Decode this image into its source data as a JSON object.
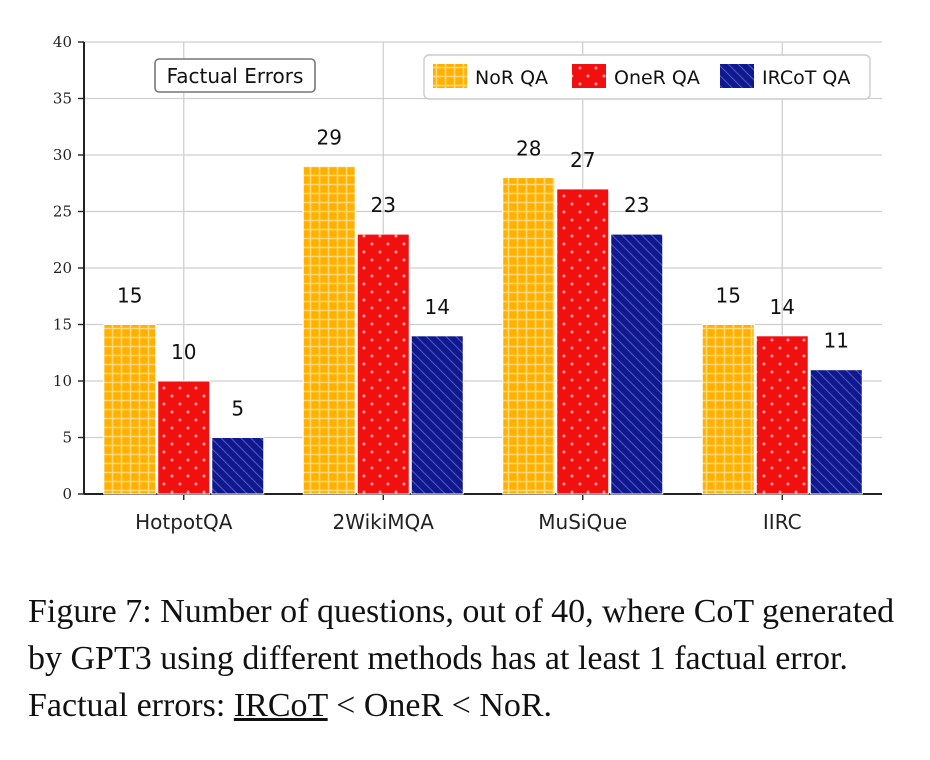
{
  "chart_data": {
    "type": "bar",
    "title": "",
    "annotation": "Factual Errors",
    "xlabel": "",
    "ylabel": "",
    "ylim": [
      0,
      40
    ],
    "yticks": [
      0,
      5,
      10,
      15,
      20,
      25,
      30,
      35,
      40
    ],
    "grid": true,
    "legend_position": "top-right",
    "categories": [
      "HotpotQA",
      "2WikiMQA",
      "MuSiQue",
      "IIRC"
    ],
    "series": [
      {
        "name": "NoR QA",
        "values": [
          15,
          29,
          28,
          15
        ],
        "color": "#FFB000",
        "pattern": "grid"
      },
      {
        "name": "OneR QA",
        "values": [
          10,
          23,
          27,
          14
        ],
        "color": "#F01010",
        "pattern": "dots"
      },
      {
        "name": "IRCoT QA",
        "values": [
          5,
          14,
          23,
          11
        ],
        "color": "#10188C",
        "pattern": "stripes"
      }
    ]
  },
  "caption": {
    "text_before": "Figure 7: Number of questions, out of 40, where CoT generated by GPT3 using different methods has at least 1 factual error. Factual errors: ",
    "underlined": "IRCoT",
    "text_after": " < OneR < NoR."
  }
}
